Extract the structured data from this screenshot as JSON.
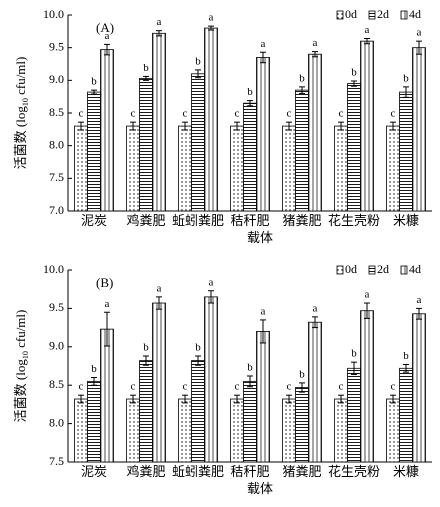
{
  "chart_data": [
    {
      "type": "bar",
      "panel_label": "(A)",
      "xlabel": "载体",
      "ylabel": [
        "活菌数 (log",
        "10",
        " cfu/ml)"
      ],
      "categories": [
        "泥炭",
        "鸡粪肥",
        "蚯蚓粪肥",
        "秸秆肥",
        "猪粪肥",
        "花生壳粉",
        "米糠"
      ],
      "ylim": [
        7.0,
        10.0
      ],
      "yticks": [
        {
          "value": 7,
          "label": "7.0"
        },
        {
          "value": 7.5,
          "label": "7.5"
        },
        {
          "value": 8,
          "label": "8.0"
        },
        {
          "value": 8.5,
          "label": "8.5"
        },
        {
          "value": 9,
          "label": "9.0"
        },
        {
          "value": 9.5,
          "label": "9.5"
        },
        {
          "value": 10,
          "label": "10.0"
        }
      ],
      "legend": "upper right",
      "series": [
        {
          "name": "0d",
          "pattern": "dots",
          "values": [
            8.3,
            8.3,
            8.3,
            8.3,
            8.3,
            8.3,
            8.3
          ],
          "errors": [
            0.06,
            0.06,
            0.06,
            0.06,
            0.06,
            0.06,
            0.06
          ],
          "letters": [
            "c",
            "c",
            "c",
            "c",
            "c",
            "c",
            "c"
          ]
        },
        {
          "name": "2d",
          "pattern": "hlines",
          "values": [
            8.82,
            9.03,
            9.1,
            8.65,
            8.85,
            8.95,
            8.82
          ],
          "errors": [
            0.03,
            0.03,
            0.06,
            0.04,
            0.05,
            0.04,
            0.08
          ],
          "letters": [
            "b",
            "b",
            "b",
            "b",
            "b",
            "b",
            "b"
          ]
        },
        {
          "name": "4d",
          "pattern": "vlines",
          "values": [
            9.47,
            9.72,
            9.8,
            9.35,
            9.4,
            9.6,
            9.5
          ],
          "errors": [
            0.08,
            0.04,
            0.03,
            0.08,
            0.04,
            0.04,
            0.1
          ],
          "letters": [
            "a",
            "a",
            "a",
            "a",
            "a",
            "a",
            "a"
          ]
        }
      ]
    },
    {
      "type": "bar",
      "panel_label": "(B)",
      "xlabel": "载体",
      "ylabel": [
        "活菌数 (log",
        "10",
        " cfu/ml)"
      ],
      "categories": [
        "泥炭",
        "鸡粪肥",
        "蚯蚓粪肥",
        "秸秆肥",
        "猪粪肥",
        "花生壳粉",
        "米糠"
      ],
      "ylim": [
        7.5,
        10.0
      ],
      "yticks": [
        {
          "value": 7.5,
          "label": "7.5"
        },
        {
          "value": 8,
          "label": "8.0"
        },
        {
          "value": 8.5,
          "label": "8.5"
        },
        {
          "value": 9,
          "label": "9.0"
        },
        {
          "value": 9.5,
          "label": "9.5"
        },
        {
          "value": 10,
          "label": "10.0"
        }
      ],
      "legend": "upper right",
      "series": [
        {
          "name": "0d",
          "pattern": "dots",
          "values": [
            8.32,
            8.32,
            8.32,
            8.32,
            8.32,
            8.32,
            8.32
          ],
          "errors": [
            0.05,
            0.05,
            0.05,
            0.05,
            0.05,
            0.05,
            0.05
          ],
          "letters": [
            "c",
            "c",
            "c",
            "c",
            "c",
            "c",
            "c"
          ]
        },
        {
          "name": "2d",
          "pattern": "hlines",
          "values": [
            8.55,
            8.82,
            8.82,
            8.55,
            8.47,
            8.72,
            8.72
          ],
          "errors": [
            0.05,
            0.06,
            0.06,
            0.07,
            0.06,
            0.08,
            0.05
          ],
          "letters": [
            "b",
            "b",
            "b",
            "b",
            "b",
            "b",
            "b"
          ]
        },
        {
          "name": "4d",
          "pattern": "vlines",
          "values": [
            9.23,
            9.57,
            9.65,
            9.2,
            9.32,
            9.47,
            9.43
          ],
          "errors": [
            0.22,
            0.08,
            0.08,
            0.15,
            0.07,
            0.1,
            0.07
          ],
          "letters": [
            "a",
            "a",
            "a",
            "a",
            "a",
            "a",
            "a"
          ]
        }
      ]
    }
  ]
}
